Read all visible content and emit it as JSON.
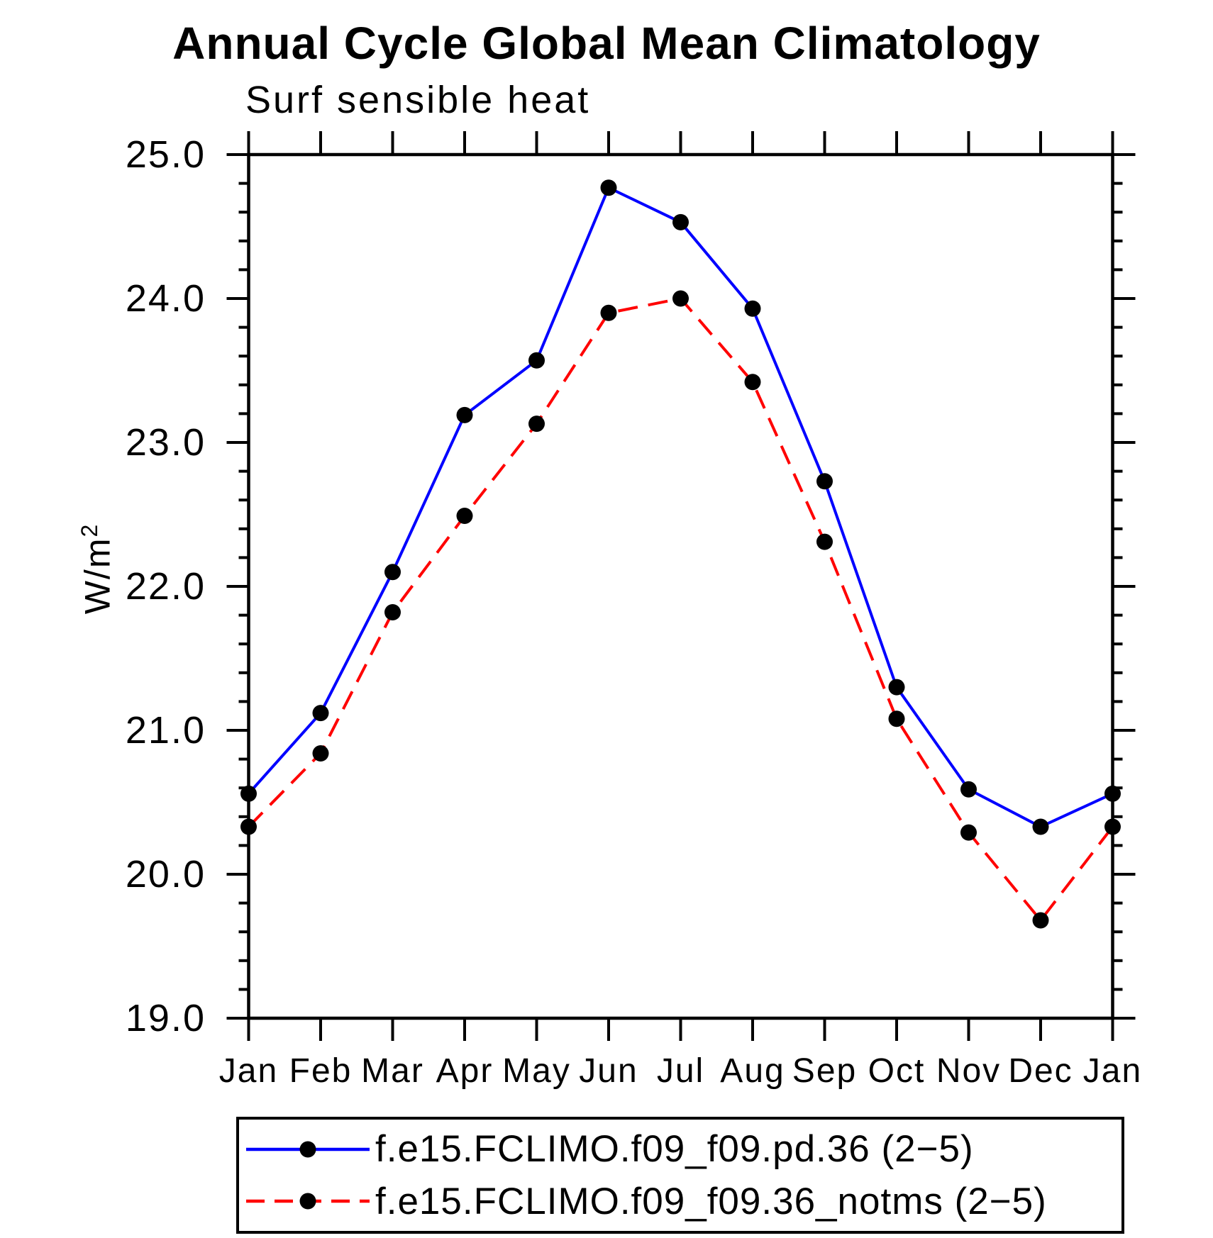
{
  "chart_data": {
    "type": "line",
    "title": "Annual Cycle Global Mean Climatology",
    "subtitle": "Surf sensible heat",
    "ylabel": {
      "base": "W/m",
      "sup": "2"
    },
    "categories": [
      "Jan",
      "Feb",
      "Mar",
      "Apr",
      "May",
      "Jun",
      "Jul",
      "Aug",
      "Sep",
      "Oct",
      "Nov",
      "Dec",
      "Jan"
    ],
    "ylim": [
      19.0,
      25.0
    ],
    "y_minor_tick_interval": 0.2,
    "grid": false,
    "legend_position": "bottom",
    "y_ticks": [
      {
        "value": 25.0,
        "label": "25.0"
      },
      {
        "value": 24.0,
        "label": "24.0"
      },
      {
        "value": 23.0,
        "label": "23.0"
      },
      {
        "value": 22.0,
        "label": "22.0"
      },
      {
        "value": 21.0,
        "label": "21.0"
      },
      {
        "value": 20.0,
        "label": "20.0"
      },
      {
        "value": 19.0,
        "label": "19.0"
      }
    ],
    "series": [
      {
        "name": "f.e15.FCLIMO.f09_f09.pd.36 (2−5)",
        "color": "#0000ff",
        "line_style": "solid",
        "marker": "filled-circle",
        "marker_color": "#000000",
        "values": [
          20.56,
          21.12,
          22.1,
          23.19,
          23.57,
          24.77,
          24.53,
          23.93,
          22.73,
          21.3,
          20.59,
          20.33,
          20.56
        ]
      },
      {
        "name": "f.e15.FCLIMO.f09_f09.36_notms (2−5)",
        "color": "#ff0000",
        "line_style": "dashed",
        "marker": "filled-circle",
        "marker_color": "#000000",
        "values": [
          20.33,
          20.84,
          21.82,
          22.49,
          23.13,
          23.9,
          24.0,
          23.42,
          22.31,
          21.08,
          20.29,
          19.68,
          20.33
        ]
      }
    ],
    "colors": {
      "background": "#ffffff",
      "axis": "#000000",
      "text": "#000000"
    }
  }
}
